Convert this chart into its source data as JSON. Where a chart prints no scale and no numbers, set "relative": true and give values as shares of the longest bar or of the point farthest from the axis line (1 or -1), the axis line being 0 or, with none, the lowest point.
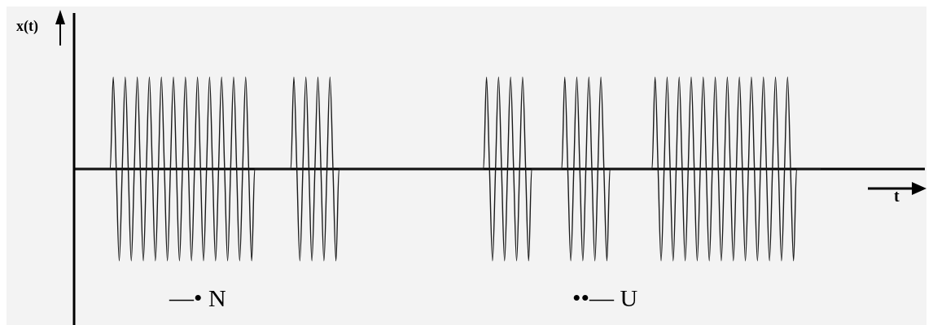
{
  "chart_data": {
    "type": "line",
    "ylabel": "x(t)",
    "xlabel": "t",
    "relative": true,
    "tick_labels": false,
    "marker": "none",
    "line_style": "solid",
    "color": "#1a1a1a",
    "annotations": [
      "—• N",
      "••— U"
    ],
    "categories": [
      null,
      null,
      null,
      null,
      null,
      null,
      null,
      null,
      null,
      null,
      null,
      null,
      null,
      null,
      null,
      null,
      null,
      null,
      null,
      null,
      null,
      null,
      null,
      null,
      null,
      null,
      null,
      null,
      null,
      null,
      null,
      null,
      null,
      null,
      null,
      null,
      null,
      null,
      null,
      null,
      null,
      null,
      null,
      null,
      null,
      null,
      null,
      null,
      null,
      null,
      null,
      null,
      null,
      null,
      null,
      null,
      null,
      null,
      null,
      null,
      null,
      null,
      null,
      null,
      null,
      null,
      null,
      null,
      null,
      null,
      null,
      null,
      null,
      null,
      null,
      null,
      null,
      null,
      null,
      null,
      null,
      null,
      null,
      null,
      null,
      null,
      null,
      null,
      null,
      null,
      null,
      null,
      null,
      null,
      null,
      null,
      null,
      null,
      null,
      null,
      null,
      null,
      null,
      null,
      null,
      null,
      null,
      null,
      null,
      null,
      null,
      null,
      null,
      null,
      null,
      null,
      null,
      null,
      null,
      null,
      null,
      null,
      null,
      null,
      null,
      null,
      null,
      null,
      null,
      null,
      null,
      null,
      null,
      null,
      null,
      null,
      null,
      null,
      null,
      null,
      null,
      null,
      null,
      null,
      null,
      null,
      null,
      null,
      null,
      null,
      null,
      null,
      null,
      null,
      null,
      null,
      null,
      null,
      null,
      null,
      null,
      null,
      null,
      null,
      null,
      null,
      null,
      null,
      null,
      null,
      null,
      null,
      null,
      null,
      null,
      null,
      null,
      null,
      null,
      null,
      null,
      null,
      null,
      null,
      null,
      null,
      null,
      null,
      null,
      null,
      null,
      null,
      null,
      null,
      null,
      null,
      null,
      null,
      null,
      null,
      null,
      null,
      null,
      null,
      null,
      null,
      null,
      null,
      null,
      null,
      null,
      null,
      null,
      null,
      null,
      null,
      null,
      null,
      null,
      null,
      null,
      null,
      null,
      null,
      null,
      null,
      null,
      null,
      null,
      null,
      null,
      null,
      null,
      null,
      null,
      null,
      null,
      null,
      null,
      null,
      null,
      null,
      null,
      null,
      null,
      null,
      null,
      null,
      null
    ],
    "values": [
      0,
      0,
      0,
      0,
      0,
      0,
      0,
      0,
      0,
      0,
      0,
      0,
      0,
      1,
      0,
      -1,
      0,
      1,
      0,
      -1,
      0,
      1,
      0,
      -1,
      0,
      1,
      0,
      -1,
      0,
      1,
      0,
      -1,
      0,
      1,
      0,
      -1,
      0,
      1,
      0,
      -1,
      0,
      1,
      0,
      -1,
      0,
      1,
      0,
      -1,
      0,
      1,
      0,
      -1,
      0,
      1,
      0,
      -1,
      0,
      1,
      0,
      -1,
      0,
      0,
      0,
      0,
      0,
      0,
      0,
      0,
      0,
      0,
      0,
      0,
      0,
      1,
      0,
      -1,
      0,
      1,
      0,
      -1,
      0,
      1,
      0,
      -1,
      0,
      1,
      0,
      -1,
      0,
      0,
      0,
      0,
      0,
      0,
      0,
      0,
      0,
      0,
      0,
      0,
      0,
      0,
      0,
      0,
      0,
      0,
      0,
      0,
      0,
      0,
      0,
      0,
      0,
      0,
      0,
      0,
      0,
      0,
      0,
      0,
      0,
      0,
      0,
      0,
      0,
      0,
      0,
      0,
      0,
      0,
      0,
      0,
      0,
      0,
      0,
      0,
      0,
      1,
      0,
      -1,
      0,
      1,
      0,
      -1,
      0,
      1,
      0,
      -1,
      0,
      1,
      0,
      -1,
      0,
      0,
      0,
      0,
      0,
      0,
      0,
      0,
      0,
      0,
      0,
      1,
      0,
      -1,
      0,
      1,
      0,
      -1,
      0,
      1,
      0,
      -1,
      0,
      1,
      0,
      -1,
      0,
      0,
      0,
      0,
      0,
      0,
      0,
      0,
      0,
      0,
      0,
      0,
      0,
      0,
      0,
      1,
      0,
      -1,
      0,
      1,
      0,
      -1,
      0,
      1,
      0,
      -1,
      0,
      1,
      0,
      -1,
      0,
      1,
      0,
      -1,
      0,
      1,
      0,
      -1,
      0,
      1,
      0,
      -1,
      0,
      1,
      0,
      -1,
      0,
      1,
      0,
      -1,
      0,
      1,
      0,
      -1,
      0,
      1,
      0,
      -1,
      0,
      1,
      0,
      -1,
      0,
      0,
      0,
      0,
      0,
      0,
      0,
      0,
      0
    ]
  }
}
